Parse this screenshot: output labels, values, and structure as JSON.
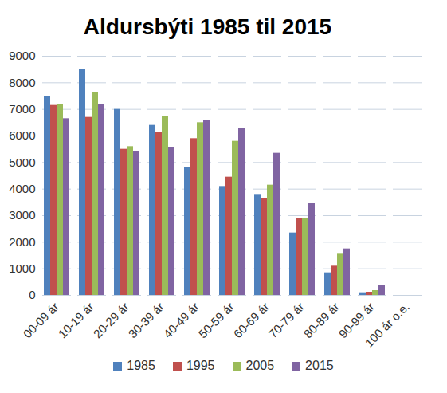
{
  "chart_data": {
    "type": "bar",
    "title": "Aldursbýti 1985 til 2015",
    "categories": [
      "00-09 ár",
      "10-19 ár",
      "20-29 ár",
      "30-39 ár",
      "40-49 ár",
      "50-59 ár",
      "60-69 ár",
      "70-79 ár",
      "80-89 ár",
      "90-99 ár",
      "100 ár o.e."
    ],
    "series": [
      {
        "name": "1985",
        "color": "#4f81bd",
        "values": [
          7500,
          8500,
          7000,
          6400,
          4800,
          4100,
          3800,
          2350,
          850,
          100,
          0
        ]
      },
      {
        "name": "1995",
        "color": "#c0504d",
        "values": [
          7150,
          6700,
          5500,
          6150,
          5900,
          4450,
          3650,
          2900,
          1100,
          120,
          0
        ]
      },
      {
        "name": "2005",
        "color": "#9bbb59",
        "values": [
          7200,
          7650,
          5600,
          6750,
          6500,
          5800,
          4150,
          2900,
          1550,
          180,
          0
        ]
      },
      {
        "name": "2015",
        "color": "#8064a2",
        "values": [
          6650,
          7200,
          5400,
          5550,
          6600,
          6300,
          5350,
          3450,
          1750,
          380,
          0
        ]
      }
    ],
    "ylim": [
      0,
      9000
    ],
    "yticks": [
      0,
      1000,
      2000,
      3000,
      4000,
      5000,
      6000,
      7000,
      8000,
      9000
    ],
    "grid": true,
    "legend": "bottom"
  }
}
